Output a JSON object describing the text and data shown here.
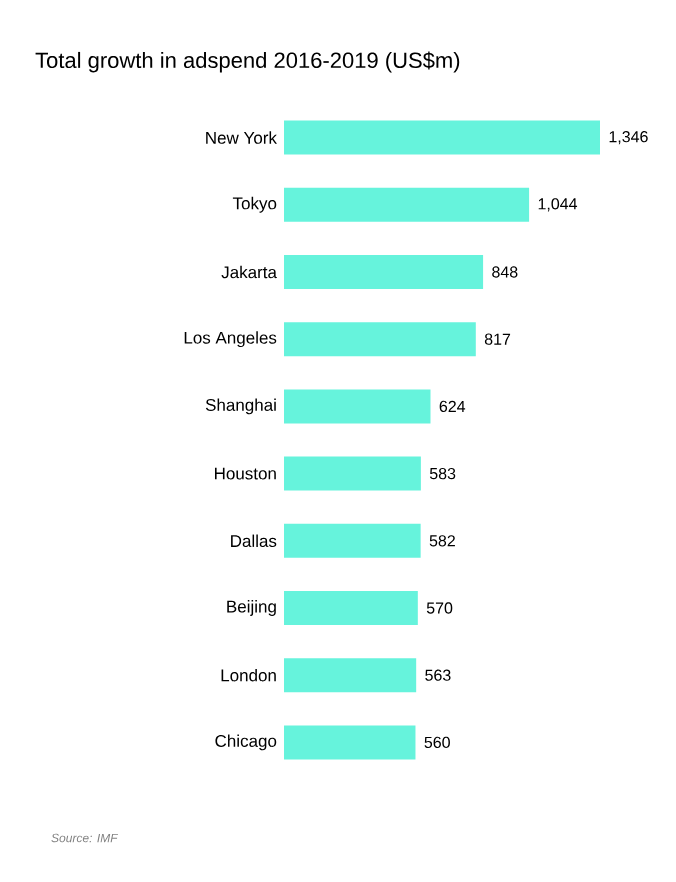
{
  "chart_data": {
    "type": "bar",
    "orientation": "horizontal",
    "title": "Total growth in adspend 2016-2019 (US$m)",
    "categories": [
      "New York",
      "Tokyo",
      "Jakarta",
      "Los Angeles",
      "Shanghai",
      "Houston",
      "Dallas",
      "Beijing",
      "London",
      "Chicago"
    ],
    "values": [
      1346,
      1044,
      848,
      817,
      624,
      583,
      582,
      570,
      563,
      560
    ],
    "value_labels": [
      "1,346",
      "1,044",
      "848",
      "817",
      "624",
      "583",
      "582",
      "570",
      "563",
      "560"
    ],
    "color": "#66f3dc",
    "grid": false,
    "annotations": [
      "Source: IMF"
    ]
  }
}
